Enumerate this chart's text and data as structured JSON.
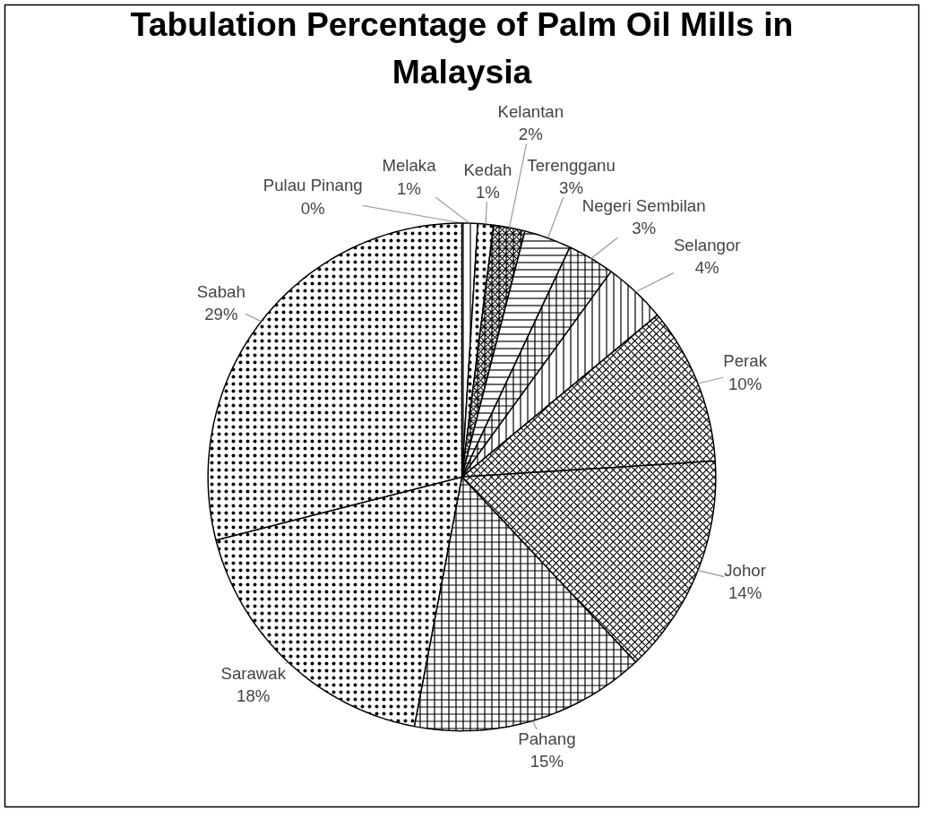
{
  "chart_data": {
    "type": "pie",
    "title": "Tabulation Percentage of Palm Oil Mills in Malaysia",
    "categories": [
      "Pulau Pinang",
      "Melaka",
      "Kedah",
      "Kelantan",
      "Terengganu",
      "Negeri Sembilan",
      "Selangor",
      "Perak",
      "Johor",
      "Pahang",
      "Sarawak",
      "Sabah"
    ],
    "values": [
      0,
      1,
      1,
      2,
      3,
      3,
      4,
      10,
      14,
      15,
      18,
      29
    ],
    "value_labels": [
      "0%",
      "1%",
      "1%",
      "2%",
      "3%",
      "3%",
      "4%",
      "10%",
      "14%",
      "15%",
      "18%",
      "29%"
    ],
    "colors": [
      "#ffffff",
      "#ffffff",
      "#ffffff",
      "#ffffff",
      "#ffffff",
      "#ffffff",
      "#ffffff",
      "#ffffff",
      "#ffffff",
      "#ffffff",
      "#ffffff",
      "#ffffff"
    ]
  }
}
